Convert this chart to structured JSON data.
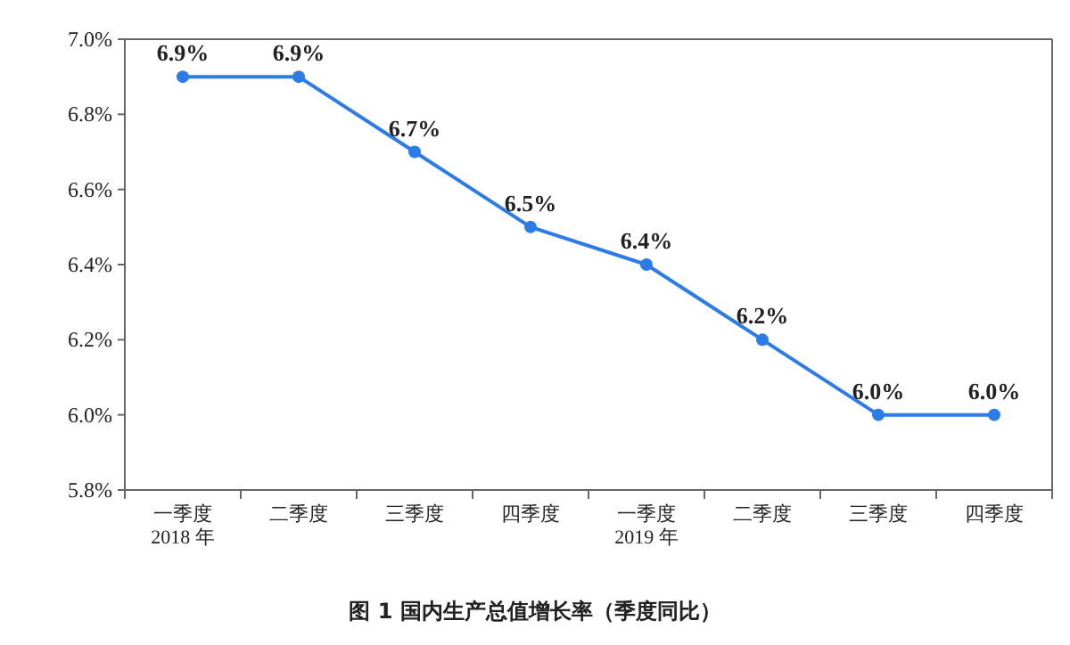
{
  "chart_data": {
    "type": "line",
    "title": "图 1  国内生产总值增长率（季度同比）",
    "categories": [
      "一季度\n2018 年",
      "二季度",
      "三季度",
      "四季度",
      "一季度\n2019 年",
      "二季度",
      "三季度",
      "四季度"
    ],
    "series": [
      {
        "color": "#2b7be8",
        "values": [
          6.9,
          6.9,
          6.7,
          6.5,
          6.4,
          6.2,
          6.0,
          6.0
        ],
        "value_labels": [
          "6.9%",
          "6.9%",
          "6.7%",
          "6.5%",
          "6.4%",
          "6.2%",
          "6.0%",
          "6.0%"
        ]
      }
    ],
    "ylim": [
      5.8,
      7.0
    ],
    "yticks": [
      {
        "value": 5.8,
        "label": "5.8%"
      },
      {
        "value": 6.0,
        "label": "6.0%"
      },
      {
        "value": 6.2,
        "label": "6.2%"
      },
      {
        "value": 6.4,
        "label": "6.4%"
      },
      {
        "value": 6.6,
        "label": "6.6%"
      },
      {
        "value": 6.8,
        "label": "6.8%"
      },
      {
        "value": 7.0,
        "label": "7.0%"
      }
    ],
    "marker": "circle",
    "line_style": "solid",
    "grid": false
  }
}
